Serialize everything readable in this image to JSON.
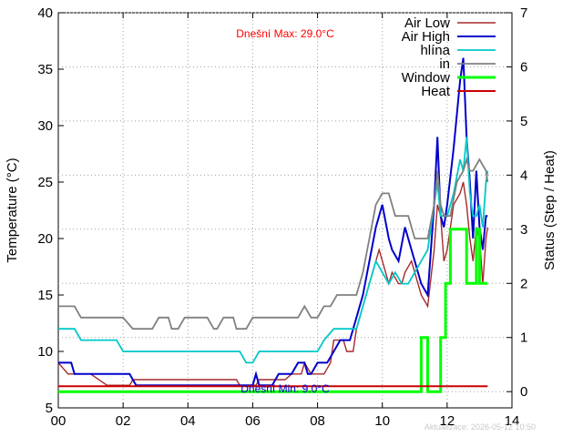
{
  "chart_data": {
    "type": "line",
    "xlim": [
      0,
      14
    ],
    "x_ticks": [
      "00",
      "02",
      "04",
      "06",
      "08",
      "10",
      "12",
      "14"
    ],
    "ylim": [
      5,
      40
    ],
    "y_ticks": [
      "5",
      "10",
      "15",
      "20",
      "25",
      "30",
      "35",
      "40"
    ],
    "ylabel": "Temperature (°C)",
    "y2lim": [
      -0.3,
      7
    ],
    "y2_ticks": [
      "0",
      "1",
      "2",
      "3",
      "4",
      "5",
      "6",
      "7"
    ],
    "y2label": "Status (Step / Heat)",
    "annotations": {
      "max_text": "Dnešní Max: 29.0°C",
      "min_text": "Dnešní Min: 9.0°C",
      "updated": "Aktualizace: 2026-05-12 10:50"
    },
    "legend_position": "top-right",
    "series": [
      {
        "name": "Air Low",
        "color": "#a52a2a",
        "axis": "left",
        "width": 1.4,
        "points": [
          [
            0,
            9
          ],
          [
            0.3,
            8
          ],
          [
            1.0,
            8
          ],
          [
            1.5,
            7
          ],
          [
            2.2,
            7
          ],
          [
            2.3,
            7.5
          ],
          [
            5.5,
            7.5
          ],
          [
            5.6,
            7
          ],
          [
            6.1,
            7
          ],
          [
            6.2,
            7.5
          ],
          [
            7.0,
            7.5
          ],
          [
            7.2,
            8
          ],
          [
            7.5,
            8
          ],
          [
            7.6,
            9
          ],
          [
            7.8,
            8
          ],
          [
            8.2,
            8
          ],
          [
            8.4,
            9
          ],
          [
            8.5,
            11
          ],
          [
            8.8,
            11
          ],
          [
            8.9,
            10
          ],
          [
            9.1,
            10
          ],
          [
            9.2,
            12
          ],
          [
            9.4,
            14
          ],
          [
            9.6,
            16
          ],
          [
            9.8,
            18
          ],
          [
            9.9,
            19
          ],
          [
            10.1,
            17
          ],
          [
            10.2,
            16
          ],
          [
            10.3,
            17
          ],
          [
            10.5,
            16
          ],
          [
            10.6,
            16
          ],
          [
            10.7,
            17
          ],
          [
            10.9,
            18
          ],
          [
            11.0,
            17
          ],
          [
            11.2,
            15
          ],
          [
            11.4,
            14
          ],
          [
            11.6,
            19
          ],
          [
            11.7,
            23
          ],
          [
            11.8,
            22
          ],
          [
            11.9,
            18
          ],
          [
            12.0,
            19
          ],
          [
            12.2,
            23
          ],
          [
            12.4,
            24
          ],
          [
            12.5,
            25
          ],
          [
            12.6,
            23
          ],
          [
            12.7,
            20
          ],
          [
            12.8,
            18
          ],
          [
            12.9,
            21
          ],
          [
            13.0,
            20
          ],
          [
            13.1,
            16
          ],
          [
            13.2,
            20
          ],
          [
            13.25,
            21
          ]
        ]
      },
      {
        "name": "Air High",
        "color": "#0000cc",
        "axis": "left",
        "width": 2,
        "points": [
          [
            0,
            9
          ],
          [
            0.4,
            9
          ],
          [
            0.5,
            8
          ],
          [
            2.2,
            8
          ],
          [
            2.4,
            7
          ],
          [
            6.0,
            7
          ],
          [
            6.1,
            8
          ],
          [
            6.2,
            7
          ],
          [
            6.6,
            7
          ],
          [
            6.8,
            8
          ],
          [
            7.2,
            8
          ],
          [
            7.4,
            9
          ],
          [
            7.6,
            9
          ],
          [
            7.7,
            8
          ],
          [
            7.8,
            8
          ],
          [
            8.0,
            9
          ],
          [
            8.3,
            9
          ],
          [
            8.5,
            10
          ],
          [
            8.7,
            11
          ],
          [
            8.9,
            11
          ],
          [
            9.0,
            11
          ],
          [
            9.2,
            13
          ],
          [
            9.4,
            15
          ],
          [
            9.6,
            18
          ],
          [
            9.8,
            21
          ],
          [
            10.0,
            23
          ],
          [
            10.2,
            20
          ],
          [
            10.3,
            19
          ],
          [
            10.5,
            18
          ],
          [
            10.7,
            21
          ],
          [
            10.9,
            19
          ],
          [
            11.0,
            18
          ],
          [
            11.2,
            16
          ],
          [
            11.4,
            15
          ],
          [
            11.6,
            23
          ],
          [
            11.7,
            29
          ],
          [
            11.8,
            22
          ],
          [
            11.9,
            21
          ],
          [
            12.0,
            23
          ],
          [
            12.2,
            28
          ],
          [
            12.4,
            34
          ],
          [
            12.5,
            36
          ],
          [
            12.6,
            29
          ],
          [
            12.7,
            25
          ],
          [
            12.8,
            20
          ],
          [
            12.9,
            26
          ],
          [
            13.0,
            21
          ],
          [
            13.1,
            19
          ],
          [
            13.2,
            22
          ],
          [
            13.25,
            22
          ]
        ]
      },
      {
        "name": "hlína",
        "color": "#00c8c8",
        "axis": "left",
        "width": 1.8,
        "points": [
          [
            0,
            12
          ],
          [
            0.5,
            12
          ],
          [
            0.7,
            11
          ],
          [
            1.8,
            11
          ],
          [
            2.0,
            10
          ],
          [
            5.6,
            10
          ],
          [
            5.8,
            9
          ],
          [
            6.0,
            9
          ],
          [
            6.2,
            10
          ],
          [
            7.8,
            10
          ],
          [
            8.0,
            10
          ],
          [
            8.2,
            11
          ],
          [
            8.5,
            12
          ],
          [
            9.2,
            12
          ],
          [
            9.4,
            14
          ],
          [
            9.6,
            16
          ],
          [
            9.8,
            18
          ],
          [
            10.0,
            17
          ],
          [
            10.2,
            16
          ],
          [
            10.4,
            17
          ],
          [
            10.6,
            16
          ],
          [
            10.8,
            16
          ],
          [
            11.0,
            17
          ],
          [
            11.2,
            18
          ],
          [
            11.4,
            19
          ],
          [
            11.6,
            23
          ],
          [
            11.7,
            25
          ],
          [
            11.8,
            22
          ],
          [
            11.9,
            22
          ],
          [
            12.0,
            22
          ],
          [
            12.2,
            24
          ],
          [
            12.4,
            27
          ],
          [
            12.5,
            26
          ],
          [
            12.6,
            29
          ],
          [
            12.7,
            24
          ],
          [
            12.8,
            22
          ],
          [
            12.9,
            22
          ],
          [
            13.0,
            23
          ],
          [
            13.1,
            21
          ],
          [
            13.2,
            25
          ],
          [
            13.25,
            26
          ]
        ]
      },
      {
        "name": "in",
        "color": "#808080",
        "axis": "left",
        "width": 1.8,
        "points": [
          [
            0,
            14
          ],
          [
            0.5,
            14
          ],
          [
            0.7,
            13
          ],
          [
            1.8,
            13
          ],
          [
            2.0,
            13
          ],
          [
            2.3,
            12
          ],
          [
            2.9,
            12
          ],
          [
            3.1,
            13
          ],
          [
            3.4,
            13
          ],
          [
            3.5,
            12
          ],
          [
            3.7,
            12
          ],
          [
            3.9,
            13
          ],
          [
            4.6,
            13
          ],
          [
            4.8,
            12
          ],
          [
            4.9,
            12
          ],
          [
            5.1,
            13
          ],
          [
            5.4,
            13
          ],
          [
            5.5,
            12
          ],
          [
            5.8,
            12
          ],
          [
            6.0,
            13
          ],
          [
            7.4,
            13
          ],
          [
            7.6,
            14
          ],
          [
            7.8,
            13
          ],
          [
            8.0,
            13
          ],
          [
            8.2,
            14
          ],
          [
            8.4,
            14
          ],
          [
            8.6,
            15
          ],
          [
            9.2,
            15
          ],
          [
            9.4,
            17
          ],
          [
            9.6,
            20
          ],
          [
            9.8,
            23
          ],
          [
            10.0,
            24
          ],
          [
            10.2,
            24
          ],
          [
            10.4,
            22
          ],
          [
            10.8,
            22
          ],
          [
            11.0,
            20
          ],
          [
            11.4,
            20
          ],
          [
            11.6,
            23
          ],
          [
            11.7,
            26
          ],
          [
            11.8,
            23
          ],
          [
            11.9,
            22
          ],
          [
            12.1,
            22
          ],
          [
            12.3,
            25
          ],
          [
            12.5,
            26
          ],
          [
            12.6,
            27
          ],
          [
            12.7,
            26
          ],
          [
            12.8,
            26
          ],
          [
            13.0,
            27
          ],
          [
            13.2,
            26
          ],
          [
            13.25,
            25
          ]
        ]
      },
      {
        "name": "Window",
        "color": "#00ff00",
        "axis": "right",
        "width": 3,
        "points": [
          [
            0,
            0
          ],
          [
            11.2,
            0
          ],
          [
            11.2,
            1
          ],
          [
            11.4,
            1
          ],
          [
            11.4,
            0
          ],
          [
            11.8,
            0
          ],
          [
            11.8,
            1
          ],
          [
            11.95,
            1
          ],
          [
            11.95,
            2
          ],
          [
            12.1,
            2
          ],
          [
            12.1,
            3
          ],
          [
            12.6,
            3
          ],
          [
            12.6,
            2
          ],
          [
            12.9,
            2
          ],
          [
            12.9,
            3
          ],
          [
            13.0,
            3
          ],
          [
            13.0,
            2
          ],
          [
            13.25,
            2
          ]
        ]
      },
      {
        "name": "Heat",
        "color": "#cc0000",
        "axis": "right",
        "width": 2,
        "points": [
          [
            0,
            0.1
          ],
          [
            13.25,
            0.1
          ]
        ]
      }
    ]
  }
}
